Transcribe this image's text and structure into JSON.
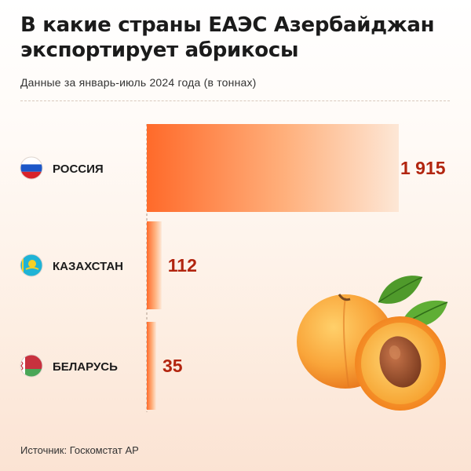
{
  "header": {
    "title": "В какие страны ЕАЭС Азербайджан экспортирует абрикосы",
    "subtitle": "Данные за январь-июль 2024 года (в тоннах)"
  },
  "footer": {
    "source": "Источник: Госкомстат АР"
  },
  "colors": {
    "bar_start": "#ff6a2a",
    "bar_end": "#fde7d6",
    "value_text": "#b2250f",
    "label_text": "#1b1b1b"
  },
  "chart_data": {
    "type": "bar",
    "orientation": "horizontal",
    "categories": [
      "РОССИЯ",
      "КАЗАХСТАН",
      "БЕЛАРУСЬ"
    ],
    "values": [
      1915,
      112,
      35
    ],
    "value_labels": [
      "1 915",
      "112",
      "35"
    ],
    "flags": [
      "russia-flag-icon",
      "kazakhstan-flag-icon",
      "belarus-flag-icon"
    ],
    "title": "В какие страны ЕАЭС Азербайджан экспортирует абрикосы",
    "subtitle": "Данные за январь-июль 2024 года (в тоннах)",
    "grid": false,
    "legend": "none"
  }
}
